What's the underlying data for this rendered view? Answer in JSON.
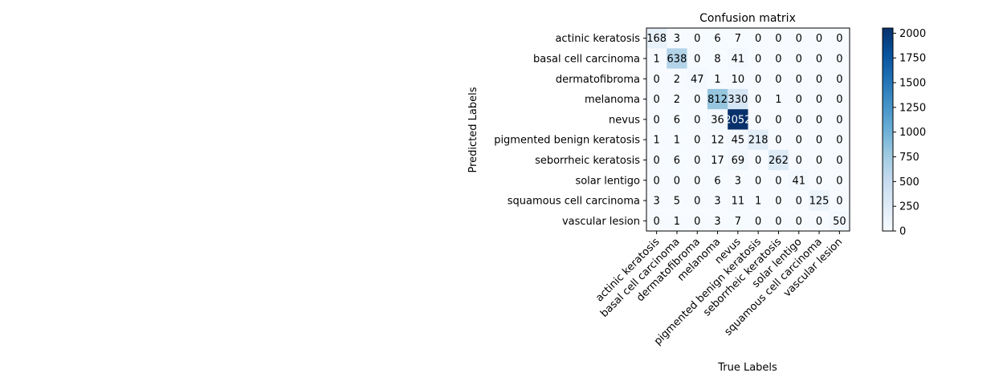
{
  "chart_data": {
    "type": "heatmap",
    "title": "Confusion matrix",
    "xlabel": "True Labels",
    "ylabel": "Predicted Labels",
    "row_labels": [
      "actinic keratosis",
      "basal cell carcinoma",
      "dermatofibroma",
      "melanoma",
      "nevus",
      "pigmented benign keratosis",
      "seborrheic keratosis",
      "solar lentigo",
      "squamous cell carcinoma",
      "vascular lesion"
    ],
    "column_labels": [
      "actinic keratosis",
      "basal cell carcinoma",
      "dermatofibroma",
      "melanoma",
      "nevus",
      "pigmented benign keratosis",
      "seborrheic keratosis",
      "solar lentigo",
      "squamous cell carcinoma",
      "vascular lesion"
    ],
    "matrix": [
      [
        168,
        3,
        0,
        6,
        7,
        0,
        0,
        0,
        0,
        0
      ],
      [
        1,
        638,
        0,
        8,
        41,
        0,
        0,
        0,
        0,
        0
      ],
      [
        0,
        2,
        47,
        1,
        10,
        0,
        0,
        0,
        0,
        0
      ],
      [
        0,
        2,
        0,
        812,
        330,
        0,
        1,
        0,
        0,
        0
      ],
      [
        0,
        6,
        0,
        36,
        2052,
        0,
        0,
        0,
        0,
        0
      ],
      [
        1,
        1,
        0,
        12,
        45,
        218,
        0,
        0,
        0,
        0
      ],
      [
        0,
        6,
        0,
        17,
        69,
        0,
        262,
        0,
        0,
        0
      ],
      [
        0,
        0,
        0,
        6,
        3,
        0,
        0,
        41,
        0,
        0
      ],
      [
        3,
        5,
        0,
        3,
        11,
        1,
        0,
        0,
        125,
        0
      ],
      [
        0,
        1,
        0,
        3,
        7,
        0,
        0,
        0,
        0,
        50
      ]
    ],
    "colorbar": {
      "min": 0,
      "max": 2052,
      "ticks": [
        0,
        250,
        500,
        750,
        1000,
        1250,
        1500,
        1750,
        2000
      ]
    },
    "colormap": {
      "low": "#f7fbff",
      "high": "#08306b"
    }
  }
}
